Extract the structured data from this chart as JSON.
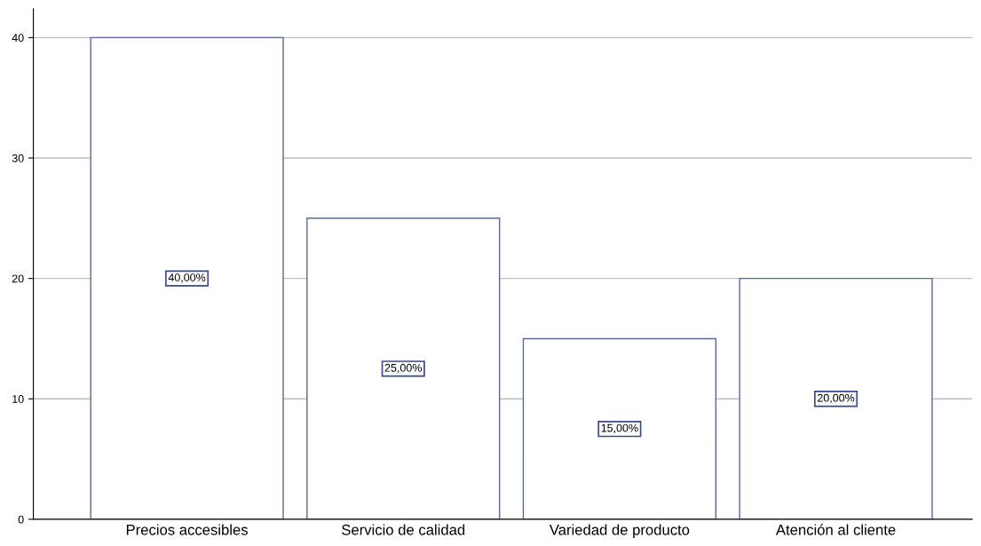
{
  "chart_data": {
    "type": "bar",
    "categories": [
      "Precios accesibles",
      "Servicio de calidad",
      "Variedad de producto",
      "Atención al cliente"
    ],
    "values": [
      40,
      25,
      15,
      20
    ],
    "value_labels": [
      "40,00%",
      "25,00%",
      "15,00%",
      "20,00%"
    ],
    "color": "#ffffff",
    "ylim": [
      0,
      42.4
    ],
    "yticks": [
      0,
      10,
      20,
      30,
      40
    ],
    "grid": "y",
    "legend": false
  }
}
